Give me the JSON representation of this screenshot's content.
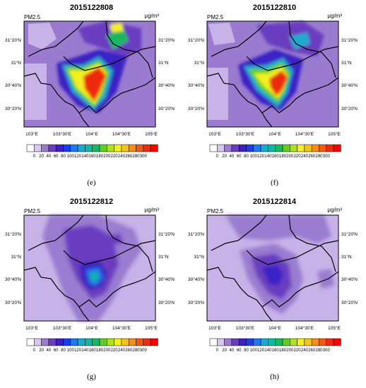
{
  "variable": "PM2.5",
  "unit": "μg/m³",
  "colorbar": {
    "ticks": [
      "0",
      "20",
      "40",
      "60",
      "80",
      "100",
      "120",
      "140",
      "160",
      "180",
      "200",
      "220",
      "240",
      "260",
      "280",
      "300"
    ],
    "colors": [
      "#ffffff",
      "#d9c8ee",
      "#9a7bd0",
      "#6a3ec0",
      "#3a20c4",
      "#1a3cf0",
      "#1f78f2",
      "#1aaad0",
      "#10b8a0",
      "#16b860",
      "#62cc24",
      "#b2e020",
      "#f2f020",
      "#f4c41a",
      "#f49018",
      "#f05a14",
      "#ee2a10",
      "#ff0000"
    ]
  },
  "axes": {
    "lon_ticks": [
      "103°E",
      "103°30'E",
      "104°E",
      "104°30'E",
      "105°E"
    ],
    "lat_ticks_left": [
      "31°20'N",
      "31°N",
      "30°40'N",
      "30°20'N"
    ],
    "lat_ticks_right": [
      "31°20'N",
      "31°N",
      "30°40'N",
      "30°20'N"
    ]
  },
  "panels": [
    {
      "title": "2015122808",
      "caption": "(e)"
    },
    {
      "title": "2015122810",
      "caption": "(f)"
    },
    {
      "title": "2015122812",
      "caption": "(g)"
    },
    {
      "title": "2015122814",
      "caption": "(h)"
    }
  ]
}
